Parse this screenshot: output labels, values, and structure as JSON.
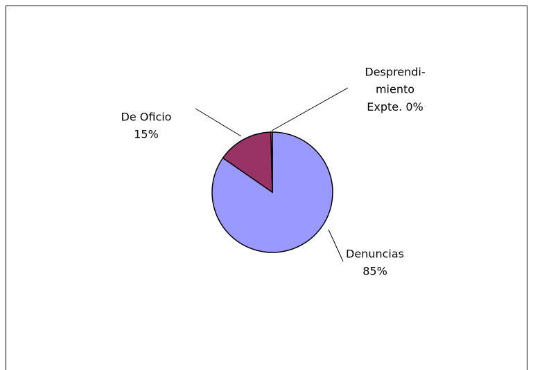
{
  "chart_data": {
    "type": "pie",
    "categories": [
      [
        "Denuncias"
      ],
      [
        "De Oficio"
      ],
      [
        "Desprendi-",
        "miento",
        "Expte."
      ]
    ],
    "values": [
      85,
      15,
      0.4
    ],
    "value_labels": [
      "85%",
      "15%",
      "0%"
    ],
    "colors": [
      "#9999ff",
      "#993366",
      "#ffffcc"
    ]
  }
}
